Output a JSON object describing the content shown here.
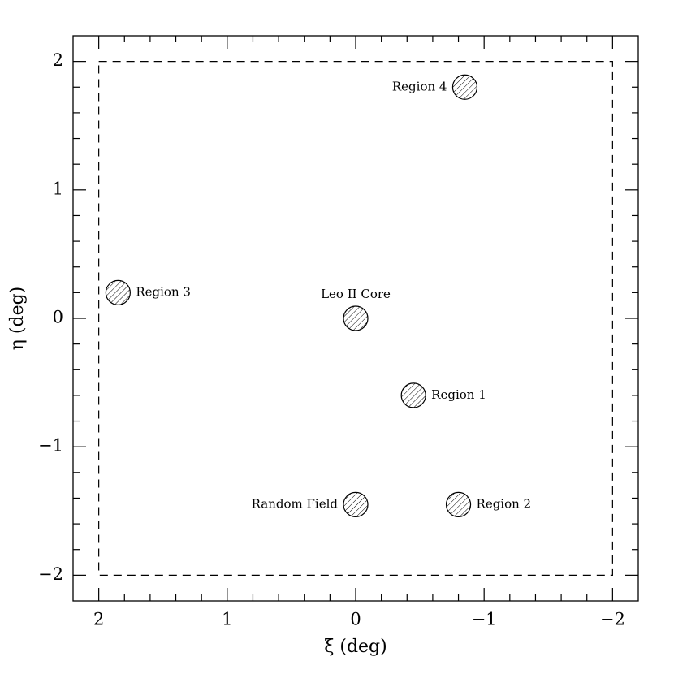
{
  "chart_data": {
    "type": "scatter",
    "xlabel": "ξ (deg)",
    "ylabel": "η (deg)",
    "xlim": [
      2.2,
      -2.2
    ],
    "ylim": [
      -2.2,
      2.2
    ],
    "xticks": [
      2,
      1,
      0,
      {
        "value": -1,
        "label": "−1"
      },
      {
        "value": -2,
        "label": "−2"
      }
    ],
    "yticks": [
      {
        "value": -2,
        "label": "−2"
      },
      {
        "value": -1,
        "label": "−1"
      },
      0,
      1,
      2
    ],
    "xminorticks": [
      1.8,
      1.6,
      1.4,
      1.2,
      0.8,
      0.6,
      0.4,
      0.2,
      -0.2,
      -0.4,
      -0.6,
      -0.8,
      -1.2,
      -1.4,
      -1.6,
      -1.8
    ],
    "yminorticks": [
      -1.8,
      -1.6,
      -1.4,
      -1.2,
      -0.8,
      -0.6,
      -0.4,
      -0.2,
      0.2,
      0.4,
      0.6,
      0.8,
      1.2,
      1.4,
      1.6,
      1.8
    ],
    "survey_box": {
      "x": [
        2,
        -2
      ],
      "y": [
        -2,
        2
      ]
    },
    "points": [
      {
        "name": "Leo II Core",
        "x": 0,
        "y": 0,
        "label_side": "top"
      },
      {
        "name": "Region 1",
        "x": -0.45,
        "y": -0.6,
        "label_side": "right"
      },
      {
        "name": "Region 2",
        "x": -0.8,
        "y": -1.45,
        "label_side": "right"
      },
      {
        "name": "Region 3",
        "x": 1.85,
        "y": 0.2,
        "label_side": "right"
      },
      {
        "name": "Region 4",
        "x": -0.85,
        "y": 1.8,
        "label_side": "left"
      },
      {
        "name": "Random Field",
        "x": 0,
        "y": -1.45,
        "label_side": "left"
      }
    ]
  }
}
